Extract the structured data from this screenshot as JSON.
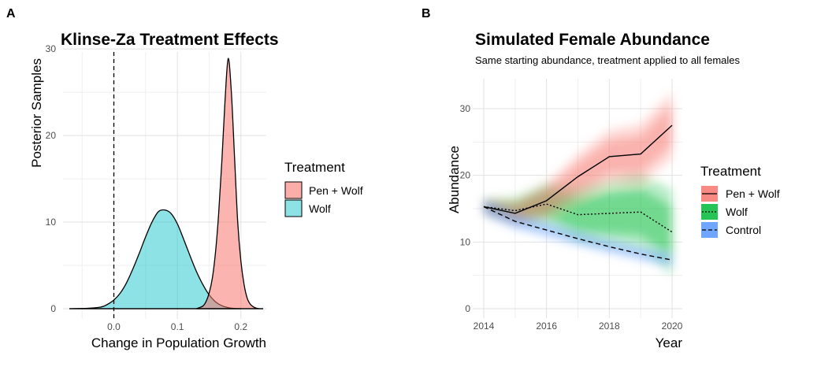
{
  "chart_data": [
    {
      "panel_tag": "A",
      "type": "area",
      "title": "Klinse-Za Treatment Effects",
      "subtitle": "",
      "xlabel": "Change in Population Growth",
      "ylabel": "Posterior Samples",
      "xlim": [
        -0.08,
        0.24
      ],
      "ylim": [
        0,
        30
      ],
      "x_ticks": [
        0.0,
        0.1,
        0.2
      ],
      "x_tick_labels": [
        "0.0",
        "0.1",
        "0.2"
      ],
      "y_ticks": [
        0,
        10,
        20,
        30
      ],
      "y_tick_labels": [
        "0",
        "10",
        "20",
        "30"
      ],
      "grid": true,
      "reference_line": {
        "x": 0,
        "style": "dashed"
      },
      "legend": {
        "title": "Treatment",
        "position": "right"
      },
      "series": [
        {
          "name": "Pen + Wolf",
          "color": "#F8766D",
          "x": [
            0.13,
            0.14,
            0.145,
            0.15,
            0.155,
            0.16,
            0.165,
            0.17,
            0.175,
            0.18,
            0.185,
            0.19,
            0.195,
            0.2,
            0.205,
            0.21,
            0.215,
            0.22,
            0.225,
            0.23,
            0.235
          ],
          "y": [
            0,
            0.3,
            0.8,
            1.8,
            3.5,
            6.5,
            11,
            17,
            24,
            28.9,
            25,
            17.5,
            10,
            5.5,
            2.8,
            1.2,
            0.5,
            0.2,
            0.05,
            0,
            0
          ]
        },
        {
          "name": "Wolf",
          "color": "#00BFC4",
          "x": [
            -0.07,
            -0.04,
            -0.02,
            -0.01,
            0.0,
            0.01,
            0.02,
            0.03,
            0.04,
            0.05,
            0.06,
            0.07,
            0.08,
            0.09,
            0.1,
            0.11,
            0.12,
            0.13,
            0.14,
            0.15,
            0.16,
            0.17,
            0.18,
            0.19,
            0.2
          ],
          "y": [
            0,
            0.05,
            0.2,
            0.5,
            1.0,
            1.8,
            3.0,
            4.6,
            6.4,
            8.3,
            10.0,
            11.2,
            11.4,
            11.0,
            9.8,
            8.0,
            6.1,
            4.3,
            2.8,
            1.6,
            0.8,
            0.35,
            0.12,
            0.03,
            0
          ]
        }
      ]
    },
    {
      "panel_tag": "B",
      "type": "line",
      "title": "Simulated Female Abundance",
      "subtitle": "Same starting abundance, treatment applied to all females",
      "xlabel": "Year",
      "ylabel": "Abundance",
      "xlim": [
        2014,
        2020
      ],
      "ylim": [
        0,
        30
      ],
      "x_ticks": [
        2014,
        2016,
        2018,
        2020
      ],
      "x_tick_labels": [
        "2014",
        "2016",
        "2018",
        "2020"
      ],
      "y_ticks": [
        0,
        10,
        20,
        30
      ],
      "y_tick_labels": [
        "0",
        "10",
        "20",
        "30"
      ],
      "grid": true,
      "legend": {
        "title": "Treatment",
        "position": "right"
      },
      "x": [
        2014,
        2015,
        2016,
        2017,
        2018,
        2019,
        2020
      ],
      "series": [
        {
          "name": "Pen + Wolf",
          "color": "#F8766D",
          "line_style": "solid",
          "values": [
            15.3,
            14.3,
            16.2,
            19.8,
            22.8,
            23.2,
            27.5
          ],
          "band_halfwidth": [
            1.2,
            1.8,
            2.6,
            3.4,
            4.0,
            4.5,
            5.0
          ]
        },
        {
          "name": "Wolf",
          "color": "#00BA38",
          "line_style": "dotted",
          "values": [
            15.3,
            14.7,
            15.7,
            14.1,
            14.3,
            14.5,
            11.5
          ],
          "band_halfwidth": [
            1.2,
            2.0,
            3.2,
            4.2,
            5.0,
            5.8,
            6.4
          ]
        },
        {
          "name": "Control",
          "color": "#619CFF",
          "line_style": "dashed",
          "values": [
            15.3,
            13.1,
            11.8,
            10.5,
            9.3,
            8.2,
            7.3
          ],
          "band_halfwidth": [
            1.2,
            1.1,
            1.0,
            0.9,
            0.9,
            0.9,
            0.9
          ]
        }
      ]
    }
  ]
}
